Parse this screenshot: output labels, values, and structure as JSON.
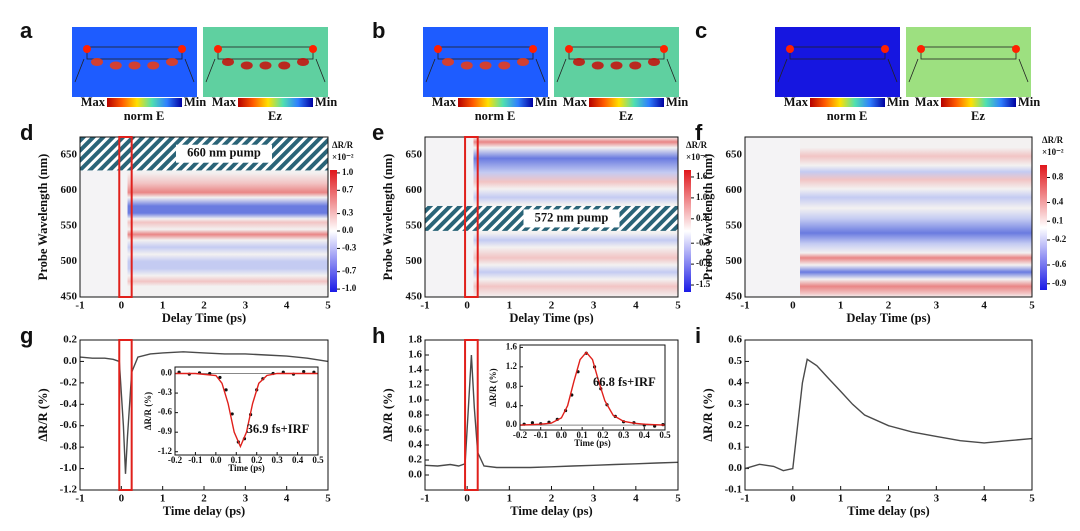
{
  "simulations": [
    {
      "label": "a",
      "fields": [
        {
          "name": "norm E",
          "max": "Max",
          "min": "Min"
        },
        {
          "name": "Ez",
          "max": "Max",
          "min": "Min"
        }
      ]
    },
    {
      "label": "b",
      "fields": [
        {
          "name": "norm E",
          "max": "Max",
          "min": "Min"
        },
        {
          "name": "Ez",
          "max": "Max",
          "min": "Min"
        }
      ]
    },
    {
      "label": "c",
      "fields": [
        {
          "name": "norm E",
          "max": "Max",
          "min": "Min"
        },
        {
          "name": "Ez",
          "max": "Max",
          "min": "Min"
        }
      ]
    }
  ],
  "chart_data": [
    {
      "type": "heatmap",
      "label": "d",
      "xlabel": "Delay Time (ps)",
      "ylabel": "Probe Wavelength (nm)",
      "xlim": [
        -1,
        5
      ],
      "xticks": [
        -1,
        0,
        1,
        2,
        3,
        4,
        5
      ],
      "ylim": [
        450,
        675
      ],
      "yticks": [
        450,
        500,
        550,
        600,
        650
      ],
      "pump_band": [
        628,
        675
      ],
      "pump_label": "660 nm pump",
      "highlight": [
        -0.05,
        0.25
      ],
      "colorbar": {
        "label": "ΔR/R",
        "unit": "×10⁻²",
        "lim": [
          -1.05,
          1.05
        ],
        "ticks": [
          {
            "value": 1,
            "label": "1.0"
          },
          0.7,
          0.3,
          {
            "value": 0,
            "label": "0.0"
          },
          -0.3,
          -0.7,
          {
            "value": -1,
            "label": "-1.0"
          }
        ]
      }
    },
    {
      "type": "heatmap",
      "label": "e",
      "xlabel": "Delay Time (ps)",
      "ylabel": "Probe Wavelength (nm)",
      "xlim": [
        -1,
        5
      ],
      "xticks": [
        -1,
        0,
        1,
        2,
        3,
        4,
        5
      ],
      "ylim": [
        450,
        675
      ],
      "yticks": [
        450,
        500,
        550,
        600,
        650
      ],
      "pump_band": [
        543,
        578
      ],
      "pump_label": "572 nm pump",
      "highlight": [
        -0.05,
        0.25
      ],
      "colorbar": {
        "label": "ΔR/R",
        "unit": "×10⁻²",
        "lim": [
          -1.7,
          1.8
        ],
        "ticks": [
          1.6,
          {
            "value": 1,
            "label": "1.0"
          },
          0.4,
          -0.3,
          -0.9,
          -1.5
        ]
      }
    },
    {
      "type": "heatmap",
      "label": "f",
      "xlabel": "Delay Time (ps)",
      "ylabel": "Probe Wavelength (nm)",
      "xlim": [
        -1,
        5
      ],
      "xticks": [
        -1,
        0,
        1,
        2,
        3,
        4,
        5
      ],
      "ylim": [
        450,
        675
      ],
      "yticks": [
        450,
        500,
        550,
        600,
        650
      ],
      "colorbar": {
        "label": "ΔR/R",
        "unit": "×10⁻²",
        "lim": [
          -1.0,
          1.0
        ],
        "ticks": [
          0.8,
          0.4,
          0.1,
          -0.2,
          -0.6,
          -0.9
        ]
      }
    },
    {
      "type": "line",
      "label": "g",
      "xlabel": "Time delay (ps)",
      "ylabel": "ΔR/R (%)",
      "xlim": [
        -1,
        5
      ],
      "xticks": [
        -1,
        0,
        1,
        2,
        3,
        4,
        5
      ],
      "ylim": [
        -1.2,
        0.2
      ],
      "yticks": [
        0.2,
        {
          "value": 0,
          "label": "0.0"
        },
        -0.2,
        -0.4,
        -0.6,
        -0.8,
        {
          "value": -1,
          "label": "-1.0"
        },
        -1.2
      ],
      "highlight": [
        -0.05,
        0.25
      ],
      "series": [
        {
          "color": "#4a4a4a",
          "mode": "line",
          "x": [
            -1,
            -0.7,
            -0.4,
            -0.2,
            -0.05,
            0.05,
            0.1,
            0.15,
            0.25,
            0.4,
            0.7,
            1,
            1.5,
            2,
            2.5,
            3,
            3.5,
            4,
            4.5,
            5
          ],
          "values": [
            0.04,
            0.03,
            0.03,
            0.02,
            0.0,
            -0.6,
            -1.05,
            -0.7,
            -0.1,
            0.04,
            0.07,
            0.08,
            0.09,
            0.08,
            0.07,
            0.07,
            0.06,
            0.05,
            0.03,
            0.0
          ]
        }
      ],
      "inset": {
        "xlabel": "Time (ps)",
        "ylabel": "ΔR/R (%)",
        "annotation": "36.9 fs+IRF",
        "xlim": [
          -0.2,
          0.5
        ],
        "xticks": [
          -0.2,
          -0.1,
          {
            "value": 0,
            "label": "0.0"
          },
          0.1,
          0.2,
          0.3,
          0.4,
          0.5
        ],
        "ylim": [
          -1.25,
          0.1
        ],
        "yticks": [
          {
            "value": 0,
            "label": "0.0"
          },
          -0.3,
          -0.6,
          -0.9,
          -1.2
        ],
        "series": [
          {
            "color": "#111111",
            "mode": "markers",
            "x": [
              -0.18,
              -0.13,
              -0.08,
              -0.03,
              0.02,
              0.05,
              0.08,
              0.11,
              0.14,
              0.17,
              0.2,
              0.23,
              0.28,
              0.33,
              0.38,
              0.43,
              0.48
            ],
            "values": [
              0.02,
              -0.01,
              0.01,
              0.0,
              -0.06,
              -0.25,
              -0.62,
              -1.05,
              -1.0,
              -0.63,
              -0.25,
              -0.08,
              0.0,
              0.02,
              -0.01,
              0.03,
              0.02
            ]
          },
          {
            "color": "#e0201b",
            "mode": "line",
            "x": [
              -0.2,
              -0.1,
              0,
              0.03,
              0.06,
              0.09,
              0.12,
              0.15,
              0.18,
              0.21,
              0.25,
              0.3,
              0.4,
              0.5
            ],
            "values": [
              0,
              0,
              -0.03,
              -0.15,
              -0.46,
              -0.9,
              -1.12,
              -0.9,
              -0.46,
              -0.15,
              -0.03,
              0,
              0,
              0
            ]
          }
        ]
      }
    },
    {
      "type": "line",
      "label": "h",
      "xlabel": "Time delay (ps)",
      "ylabel": "ΔR/R (%)",
      "xlim": [
        -1,
        5
      ],
      "xticks": [
        -1,
        0,
        1,
        2,
        3,
        4,
        5
      ],
      "ylim": [
        -0.2,
        1.8
      ],
      "yticks": [
        {
          "value": 0,
          "label": "0.0"
        },
        0.2,
        0.4,
        0.6,
        0.8,
        {
          "value": 1,
          "label": "1.0"
        },
        1.2,
        1.4,
        1.6,
        1.8
      ],
      "highlight": [
        -0.05,
        0.25
      ],
      "series": [
        {
          "color": "#4a4a4a",
          "mode": "line",
          "x": [
            -1,
            -0.7,
            -0.4,
            -0.2,
            -0.05,
            0.03,
            0.1,
            0.17,
            0.25,
            0.4,
            0.7,
            1,
            1.5,
            2,
            2.5,
            3,
            3.5,
            4,
            4.5,
            5
          ],
          "values": [
            0.13,
            0.12,
            0.14,
            0.12,
            0.15,
            0.9,
            1.6,
            0.9,
            0.3,
            0.12,
            0.1,
            0.1,
            0.1,
            0.11,
            0.12,
            0.13,
            0.14,
            0.15,
            0.16,
            0.17
          ]
        }
      ],
      "inset": {
        "xlabel": "Time (ps)",
        "ylabel": "ΔR/R (%)",
        "annotation": "66.8 fs+IRF",
        "xlim": [
          -0.2,
          0.5
        ],
        "xticks": [
          -0.2,
          -0.1,
          {
            "value": 0,
            "label": "0.0"
          },
          0.1,
          0.2,
          0.3,
          0.4,
          0.5
        ],
        "ylim": [
          -0.1,
          1.65
        ],
        "yticks": [
          {
            "value": 0,
            "label": "0.0"
          },
          0.4,
          0.8,
          1.2,
          1.6
        ],
        "series": [
          {
            "color": "#111111",
            "mode": "markers",
            "x": [
              -0.18,
              -0.14,
              -0.1,
              -0.06,
              -0.02,
              0.02,
              0.05,
              0.08,
              0.12,
              0.16,
              0.19,
              0.22,
              0.26,
              0.3,
              0.35,
              0.4,
              0.45,
              0.49
            ],
            "values": [
              0.02,
              0.05,
              0.03,
              0.06,
              0.12,
              0.3,
              0.62,
              1.1,
              1.48,
              1.2,
              0.75,
              0.42,
              0.18,
              0.07,
              0.05,
              0.0,
              -0.02,
              0.01
            ]
          },
          {
            "color": "#e0201b",
            "mode": "line",
            "x": [
              -0.2,
              -0.15,
              -0.1,
              -0.05,
              0,
              0.03,
              0.06,
              0.09,
              0.12,
              0.15,
              0.18,
              0.21,
              0.25,
              0.3,
              0.35,
              0.4,
              0.45,
              0.5
            ],
            "values": [
              0.0,
              0.01,
              0.02,
              0.04,
              0.15,
              0.4,
              0.9,
              1.35,
              1.5,
              1.35,
              0.9,
              0.5,
              0.2,
              0.08,
              0.04,
              0.02,
              0.01,
              0.0
            ]
          }
        ]
      }
    },
    {
      "type": "line",
      "label": "i",
      "xlabel": "Time delay (ps)",
      "ylabel": "ΔR/R (%)",
      "xlim": [
        -1,
        5
      ],
      "xticks": [
        -1,
        0,
        1,
        2,
        3,
        4,
        5
      ],
      "ylim": [
        -0.1,
        0.6
      ],
      "yticks": [
        -0.1,
        {
          "value": 0,
          "label": "0.0"
        },
        0.1,
        0.2,
        0.3,
        0.4,
        0.5,
        0.6
      ],
      "series": [
        {
          "color": "#4a4a4a",
          "mode": "line",
          "x": [
            -1,
            -0.7,
            -0.4,
            -0.2,
            0,
            0.1,
            0.2,
            0.3,
            0.5,
            0.75,
            1,
            1.25,
            1.5,
            2,
            2.5,
            3,
            3.5,
            4,
            4.5,
            5
          ],
          "values": [
            0.0,
            0.02,
            0.01,
            -0.01,
            0.0,
            0.2,
            0.4,
            0.51,
            0.48,
            0.42,
            0.36,
            0.3,
            0.25,
            0.2,
            0.17,
            0.15,
            0.13,
            0.12,
            0.13,
            0.14
          ]
        }
      ]
    }
  ]
}
